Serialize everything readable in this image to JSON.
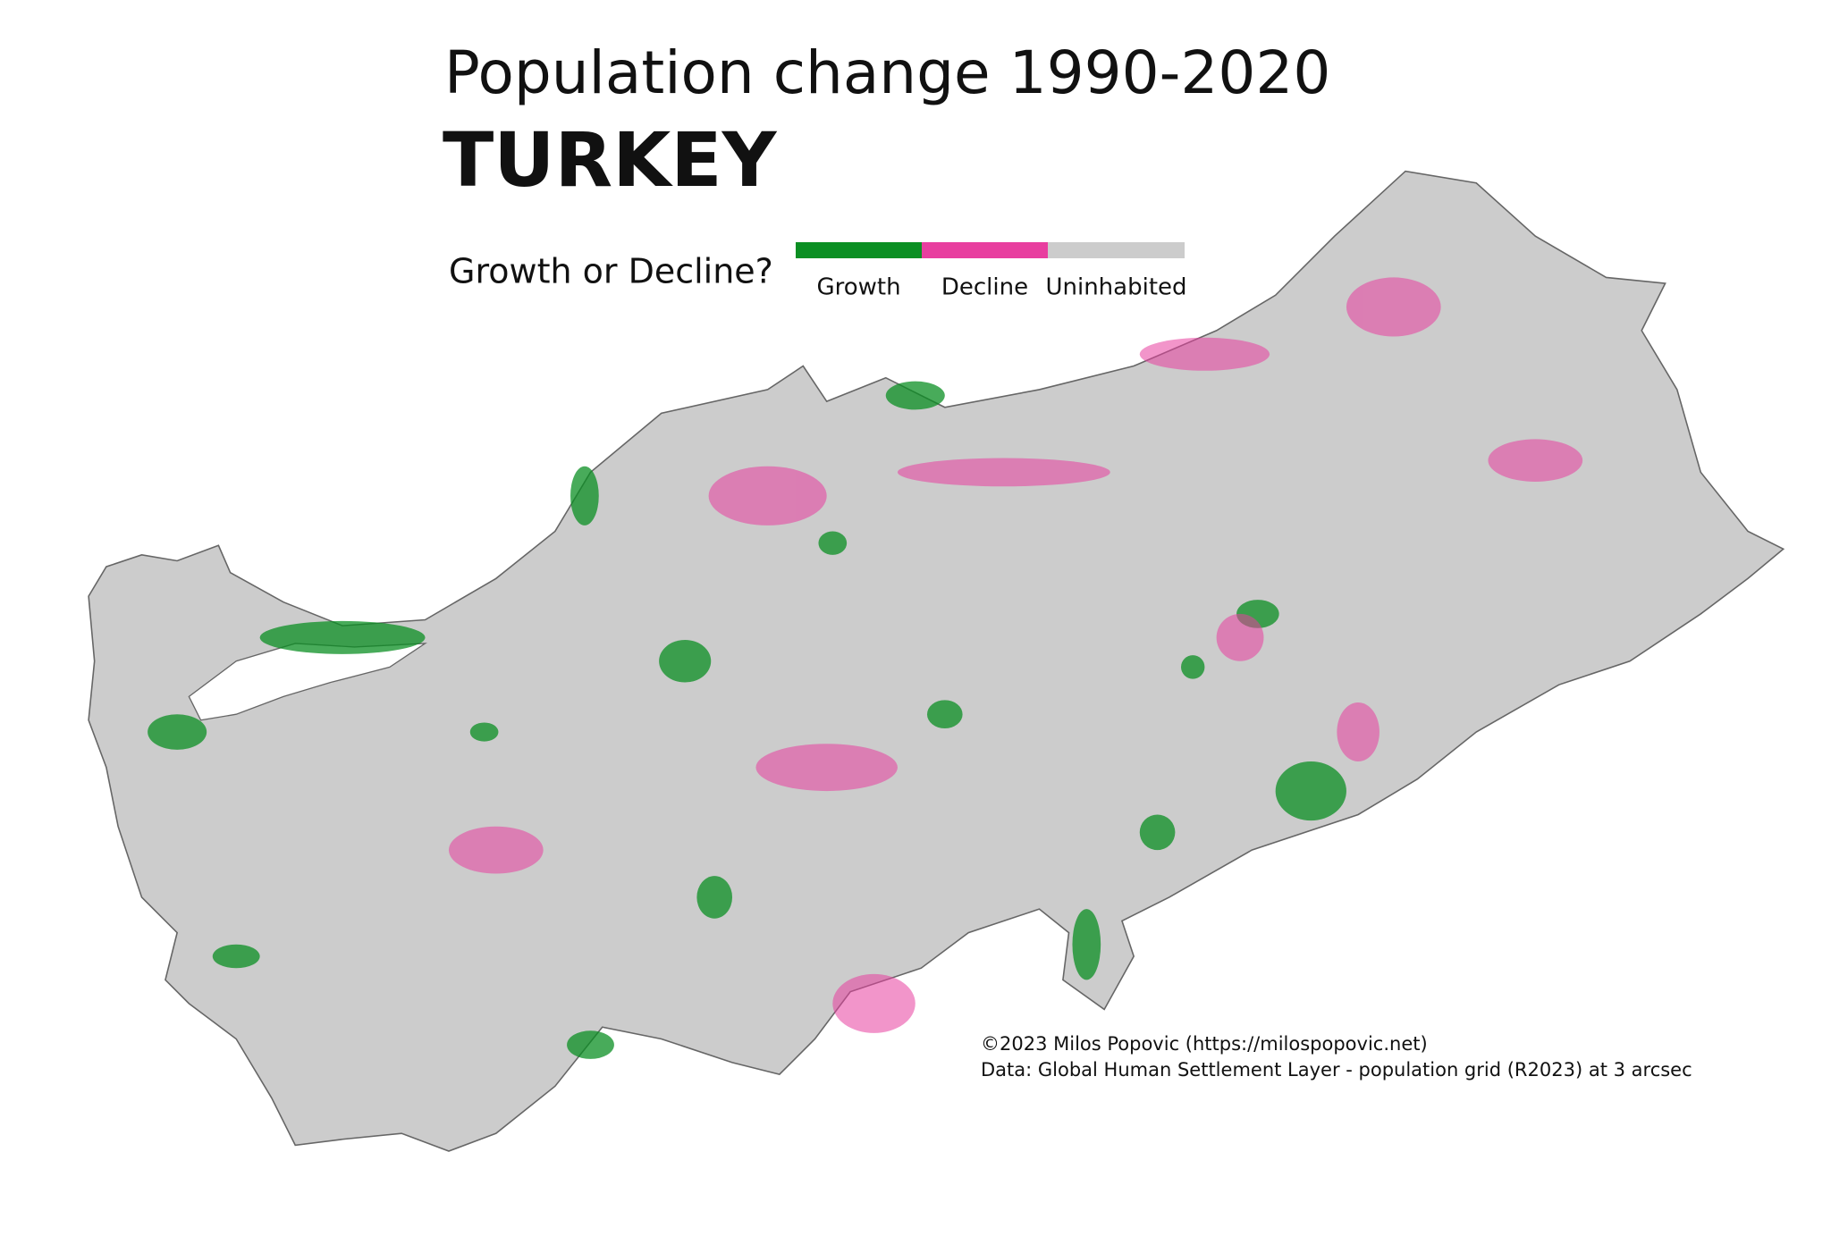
{
  "header": {
    "title": "Population change 1990-2020",
    "subtitle": "TURKEY"
  },
  "legend": {
    "title": "Growth or Decline?",
    "items": [
      {
        "label": "Growth",
        "color": "#0b8f23"
      },
      {
        "label": "Decline",
        "color": "#e83e9f"
      },
      {
        "label": "Uninhabited",
        "color": "#cccccc"
      }
    ]
  },
  "credits": [
    "©2023 Milos Popovic (https://milospopovic.net)",
    "Data: Global Human Settlement Layer - population grid (R2023) at 3 arcsec"
  ]
}
